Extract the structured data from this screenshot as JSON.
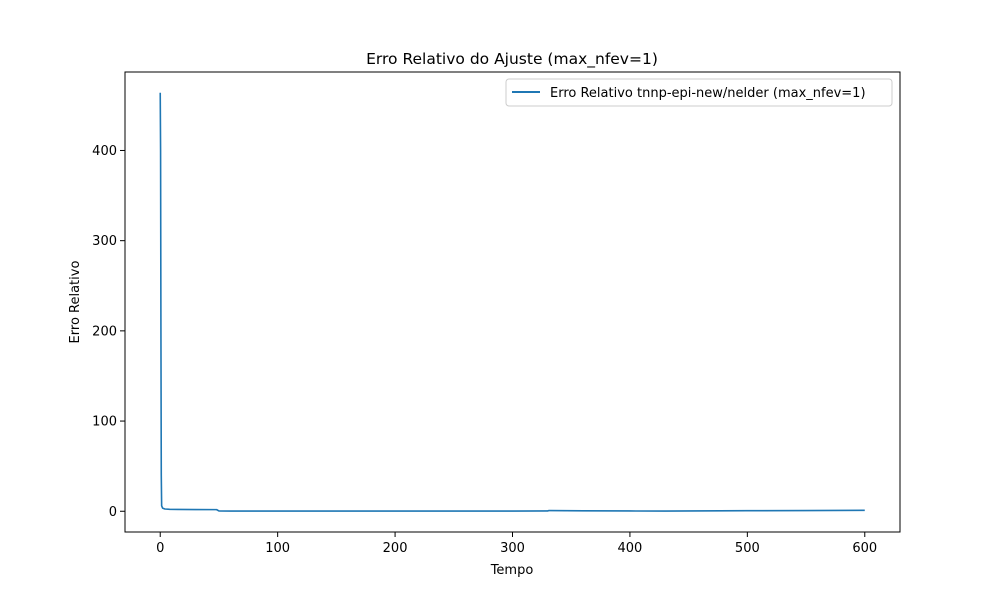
{
  "chart_data": {
    "type": "line",
    "title": "Erro Relativo do Ajuste (max_nfev=1)",
    "xlabel": "Tempo",
    "ylabel": "Erro Relativo",
    "xlim": [
      -30,
      630
    ],
    "ylim": [
      -23,
      487
    ],
    "x_ticks": [
      0,
      100,
      200,
      300,
      400,
      500,
      600
    ],
    "y_ticks": [
      0,
      100,
      200,
      300,
      400
    ],
    "grid": false,
    "legend_position": "upper right",
    "series": [
      {
        "name": "Erro Relativo tnnp-epi-new/nelder (max_nfev=1)",
        "color": "#1f77b4",
        "points": [
          [
            0,
            464
          ],
          [
            0.3,
            400
          ],
          [
            0.6,
            200
          ],
          [
            0.9,
            40
          ],
          [
            1.2,
            6
          ],
          [
            2,
            3.5
          ],
          [
            4,
            2.5
          ],
          [
            8,
            2.2
          ],
          [
            15,
            2.0
          ],
          [
            30,
            1.9
          ],
          [
            48,
            1.8
          ],
          [
            50,
            0.3
          ],
          [
            60,
            0.2
          ],
          [
            100,
            0.2
          ],
          [
            200,
            0.2
          ],
          [
            300,
            0.2
          ],
          [
            330,
            0.3
          ],
          [
            331,
            0.8
          ],
          [
            360,
            0.5
          ],
          [
            400,
            0.3
          ],
          [
            430,
            0.2
          ],
          [
            500,
            0.6
          ],
          [
            550,
            0.8
          ],
          [
            600,
            1.0
          ]
        ]
      }
    ]
  }
}
